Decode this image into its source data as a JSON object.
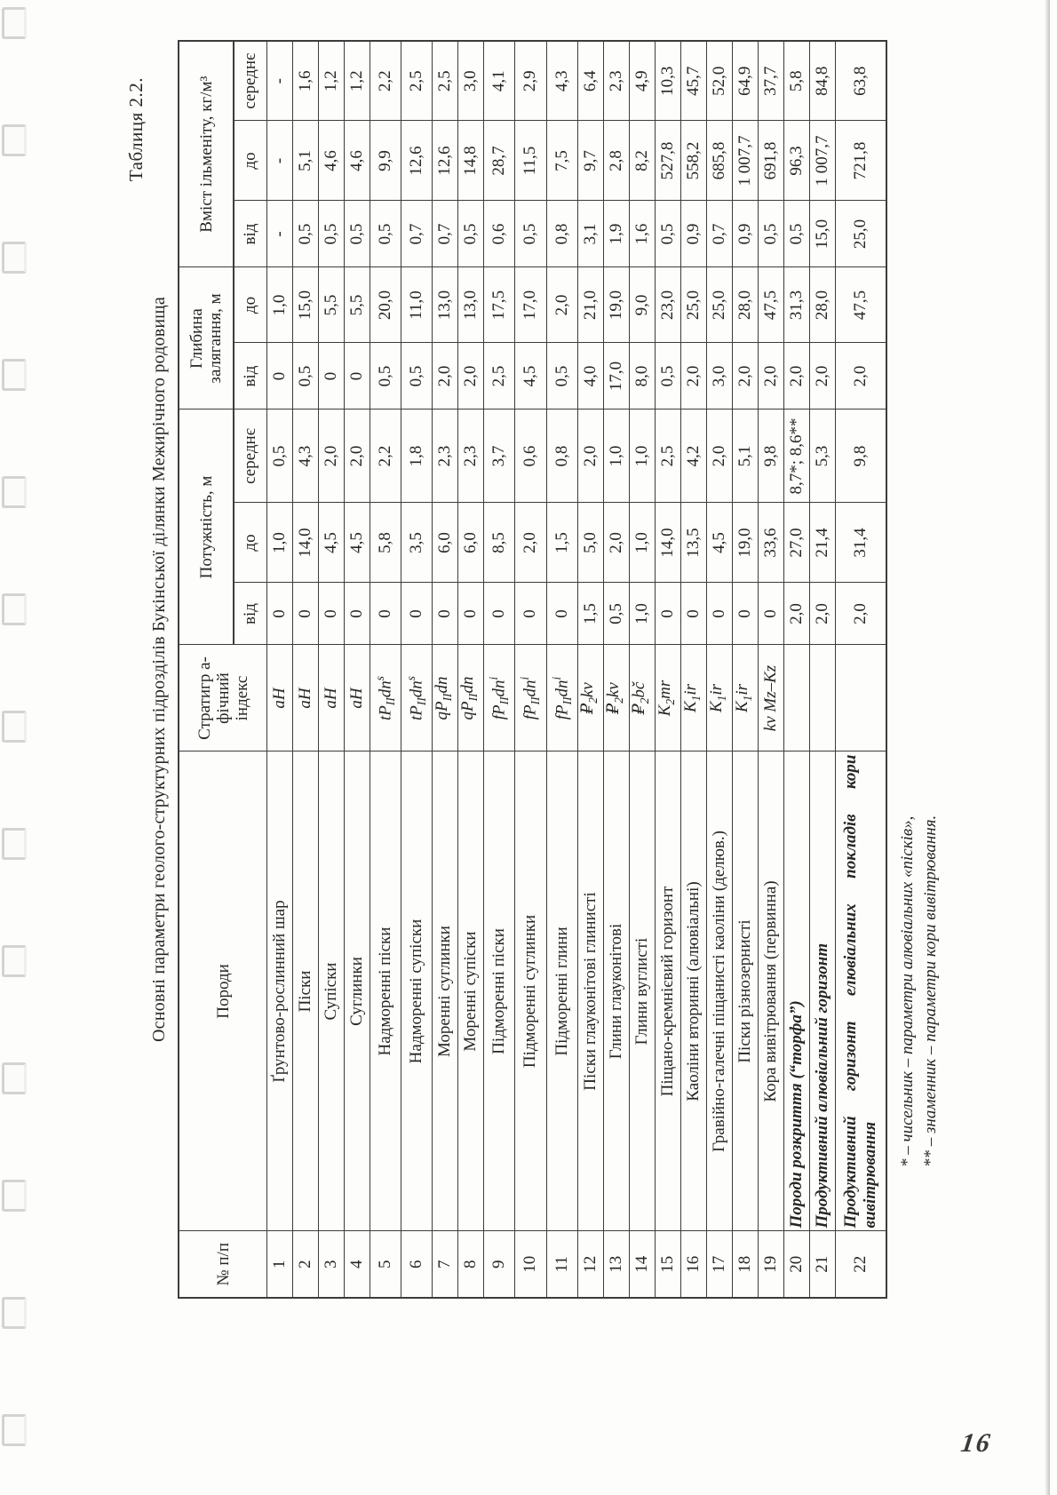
{
  "page": {
    "caption": "Таблиця 2.2.",
    "title": "Основні параметри геолого-структурних підрозділів Букінської ділянки Межирічного родовища",
    "page_number": "16"
  },
  "footnotes": [
    "* – чисельник – параметри алювіальних «пісків»,",
    "** – знаменник – параметри кори вивітрювання."
  ],
  "table": {
    "headers": {
      "num": "№ п/п",
      "rock": "Породи",
      "index": "Стратигр а-фічний індекс",
      "thickness": "Потужність, м",
      "depth": "Глибина залягання, м",
      "content": "Вміст ільменіту, кг/м³",
      "from": "від",
      "to": "до",
      "avg": "середнє"
    },
    "rows": [
      {
        "num": "1",
        "name": "Ґрунтово-рослинний шар",
        "bold": false,
        "tall": false,
        "index": [
          [
            "i",
            "aH"
          ]
        ],
        "t_from": "0",
        "t_to": "1,0",
        "t_avg": "0,5",
        "d_from": "0",
        "d_to": "1,0",
        "c_from": "-",
        "c_to": "-",
        "c_avg": "-"
      },
      {
        "num": "2",
        "name": "Піски",
        "bold": false,
        "tall": false,
        "index": [
          [
            "i",
            "aH"
          ]
        ],
        "t_from": "0",
        "t_to": "14,0",
        "t_avg": "4,3",
        "d_from": "0,5",
        "d_to": "15,0",
        "c_from": "0,5",
        "c_to": "5,1",
        "c_avg": "1,6"
      },
      {
        "num": "3",
        "name": "Супіски",
        "bold": false,
        "tall": false,
        "index": [
          [
            "i",
            "aH"
          ]
        ],
        "t_from": "0",
        "t_to": "4,5",
        "t_avg": "2,0",
        "d_from": "0",
        "d_to": "5,5",
        "c_from": "0,5",
        "c_to": "4,6",
        "c_avg": "1,2"
      },
      {
        "num": "4",
        "name": "Суглинки",
        "bold": false,
        "tall": false,
        "index": [
          [
            "i",
            "aH"
          ]
        ],
        "t_from": "0",
        "t_to": "4,5",
        "t_avg": "2,0",
        "d_from": "0",
        "d_to": "5,5",
        "c_from": "0,5",
        "c_to": "4,6",
        "c_avg": "1,2"
      },
      {
        "num": "5",
        "name": "Надморенні піски",
        "bold": false,
        "tall": false,
        "index": [
          [
            "i",
            "tP"
          ],
          [
            "sub",
            "II"
          ],
          [
            "i",
            "dn"
          ],
          [
            "sup",
            "s"
          ]
        ],
        "t_from": "0",
        "t_to": "5,8",
        "t_avg": "2,2",
        "d_from": "0,5",
        "d_to": "20,0",
        "c_from": "0,5",
        "c_to": "9,9",
        "c_avg": "2,2"
      },
      {
        "num": "6",
        "name": "Надморенні супіски",
        "bold": false,
        "tall": false,
        "index": [
          [
            "i",
            "tP"
          ],
          [
            "sub",
            "II"
          ],
          [
            "i",
            "dn"
          ],
          [
            "sup",
            "s"
          ]
        ],
        "t_from": "0",
        "t_to": "3,5",
        "t_avg": "1,8",
        "d_from": "0,5",
        "d_to": "11,0",
        "c_from": "0,7",
        "c_to": "12,6",
        "c_avg": "2,5"
      },
      {
        "num": "7",
        "name": "Моренні суглинки",
        "bold": false,
        "tall": false,
        "index": [
          [
            "i",
            "qP"
          ],
          [
            "sub",
            "II"
          ],
          [
            "i",
            "dn"
          ]
        ],
        "t_from": "0",
        "t_to": "6,0",
        "t_avg": "2,3",
        "d_from": "2,0",
        "d_to": "13,0",
        "c_from": "0,7",
        "c_to": "12,6",
        "c_avg": "2,5"
      },
      {
        "num": "8",
        "name": "Моренні супіски",
        "bold": false,
        "tall": false,
        "index": [
          [
            "i",
            "qP"
          ],
          [
            "sub",
            "II"
          ],
          [
            "i",
            "dn"
          ]
        ],
        "t_from": "0",
        "t_to": "6,0",
        "t_avg": "2,3",
        "d_from": "2,0",
        "d_to": "13,0",
        "c_from": "0,5",
        "c_to": "14,8",
        "c_avg": "3,0"
      },
      {
        "num": "9",
        "name": "Підморенні піски",
        "bold": false,
        "tall": false,
        "index": [
          [
            "i",
            "fP"
          ],
          [
            "sub",
            "II"
          ],
          [
            "i",
            "dn"
          ],
          [
            "sup",
            "i"
          ]
        ],
        "t_from": "0",
        "t_to": "8,5",
        "t_avg": "3,7",
        "d_from": "2,5",
        "d_to": "17,5",
        "c_from": "0,6",
        "c_to": "28,7",
        "c_avg": "4,1"
      },
      {
        "num": "10",
        "name": "Підморенні суглинки",
        "bold": false,
        "tall": false,
        "index": [
          [
            "i",
            "fP"
          ],
          [
            "sub",
            "II"
          ],
          [
            "i",
            "dn"
          ],
          [
            "sup",
            "i"
          ]
        ],
        "t_from": "0",
        "t_to": "2,0",
        "t_avg": "0,6",
        "d_from": "4,5",
        "d_to": "17,0",
        "c_from": "0,5",
        "c_to": "11,5",
        "c_avg": "2,9"
      },
      {
        "num": "11",
        "name": "Підморенні глини",
        "bold": false,
        "tall": false,
        "index": [
          [
            "i",
            "fP"
          ],
          [
            "sub",
            "II"
          ],
          [
            "i",
            "dn"
          ],
          [
            "sup",
            "i"
          ]
        ],
        "t_from": "0",
        "t_to": "1,5",
        "t_avg": "0,8",
        "d_from": "0,5",
        "d_to": "2,0",
        "c_from": "0,8",
        "c_to": "7,5",
        "c_avg": "4,3"
      },
      {
        "num": "12",
        "name": "Піски глауконітові глинисті",
        "bold": false,
        "tall": false,
        "index": [
          [
            "i",
            "₽"
          ],
          [
            "sub",
            "2"
          ],
          [
            "i",
            "kv"
          ]
        ],
        "t_from": "1,5",
        "t_to": "5,0",
        "t_avg": "2,0",
        "d_from": "4,0",
        "d_to": "21,0",
        "c_from": "3,1",
        "c_to": "9,7",
        "c_avg": "6,4"
      },
      {
        "num": "13",
        "name": "Глини глауконітові",
        "bold": false,
        "tall": false,
        "index": [
          [
            "i",
            "₽"
          ],
          [
            "sub",
            "2"
          ],
          [
            "i",
            "kv"
          ]
        ],
        "t_from": "0,5",
        "t_to": "2,0",
        "t_avg": "1,0",
        "d_from": "17,0",
        "d_to": "19,0",
        "c_from": "1,9",
        "c_to": "2,8",
        "c_avg": "2,3"
      },
      {
        "num": "14",
        "name": "Глини вуглисті",
        "bold": false,
        "tall": false,
        "index": [
          [
            "i",
            "₽"
          ],
          [
            "sub",
            "2"
          ],
          [
            "i",
            "bč"
          ]
        ],
        "t_from": "1,0",
        "t_to": "1,0",
        "t_avg": "1,0",
        "d_from": "8,0",
        "d_to": "9,0",
        "c_from": "1,6",
        "c_to": "8,2",
        "c_avg": "4,9"
      },
      {
        "num": "15",
        "name": "Піщано-кремнієвий горизонт",
        "bold": false,
        "tall": false,
        "index": [
          [
            "i",
            "K"
          ],
          [
            "sub",
            "2"
          ],
          [
            "i",
            "mr"
          ]
        ],
        "t_from": "0",
        "t_to": "14,0",
        "t_avg": "2,5",
        "d_from": "0,5",
        "d_to": "23,0",
        "c_from": "0,5",
        "c_to": "527,8",
        "c_avg": "10,3"
      },
      {
        "num": "16",
        "name": "Каоліни вторинні (алювіальні)",
        "bold": false,
        "tall": false,
        "index": [
          [
            "i",
            "K"
          ],
          [
            "sub",
            "1"
          ],
          [
            "i",
            "ir"
          ]
        ],
        "t_from": "0",
        "t_to": "13,5",
        "t_avg": "4,2",
        "d_from": "2,0",
        "d_to": "25,0",
        "c_from": "0,9",
        "c_to": "558,2",
        "c_avg": "45,7"
      },
      {
        "num": "17",
        "name": "Гравійно-галечні піщанисті каоліни (делюв.)",
        "bold": false,
        "tall": false,
        "index": [
          [
            "i",
            "K"
          ],
          [
            "sub",
            "1"
          ],
          [
            "i",
            "ir"
          ]
        ],
        "t_from": "0",
        "t_to": "4,5",
        "t_avg": "2,0",
        "d_from": "3,0",
        "d_to": "25,0",
        "c_from": "0,7",
        "c_to": "685,8",
        "c_avg": "52,0"
      },
      {
        "num": "18",
        "name": "Піски різнозернисті",
        "bold": false,
        "tall": false,
        "index": [
          [
            "i",
            "K"
          ],
          [
            "sub",
            "1"
          ],
          [
            "i",
            "ir"
          ]
        ],
        "t_from": "0",
        "t_to": "19,0",
        "t_avg": "5,1",
        "d_from": "2,0",
        "d_to": "28,0",
        "c_from": "0,9",
        "c_to": "1 007,7",
        "c_avg": "64,9"
      },
      {
        "num": "19",
        "name": "Кора вивітрювання (первинна)",
        "bold": false,
        "tall": false,
        "index": [
          [
            "i",
            "kv Mz–Kz"
          ]
        ],
        "t_from": "0",
        "t_to": "33,6",
        "t_avg": "9,8",
        "d_from": "2,0",
        "d_to": "47,5",
        "c_from": "0,5",
        "c_to": "691,8",
        "c_avg": "37,7"
      },
      {
        "num": "20",
        "name": "Породи розкриття (“торфа”)",
        "bold": true,
        "tall": false,
        "index": [],
        "t_from": "2,0",
        "t_to": "27,0",
        "t_avg": "8,7*; 8,6**",
        "d_from": "2,0",
        "d_to": "31,3",
        "c_from": "0,5",
        "c_to": "96,3",
        "c_avg": "5,8"
      },
      {
        "num": "21",
        "name": "Продуктивний алювіальний горизонт",
        "bold": true,
        "tall": false,
        "index": [],
        "t_from": "2,0",
        "t_to": "21,4",
        "t_avg": "5,3",
        "d_from": "2,0",
        "d_to": "28,0",
        "c_from": "15,0",
        "c_to": "1 007,7",
        "c_avg": "84,8"
      },
      {
        "num": "22",
        "name": "Продуктивний горизонт елювіальних покладів кори вивітрювання",
        "bold": true,
        "tall": true,
        "index": [],
        "t_from": "2,0",
        "t_to": "31,4",
        "t_avg": "9,8",
        "d_from": "2,0",
        "d_to": "47,5",
        "c_from": "25,0",
        "c_to": "721,8",
        "c_avg": "63,8"
      }
    ]
  }
}
